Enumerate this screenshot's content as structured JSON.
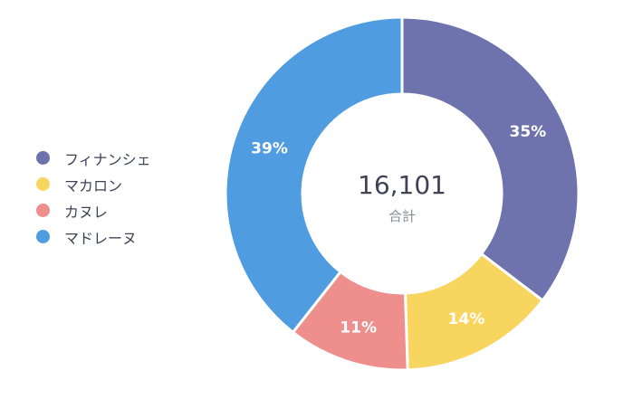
{
  "chart_data": {
    "type": "pie",
    "donut": true,
    "legend_position": "left",
    "categories": [
      "フィナンシェ",
      "マカロン",
      "カヌレ",
      "マドレーヌ"
    ],
    "values": [
      35,
      14,
      11,
      39
    ],
    "data_labels": [
      "35%",
      "14%",
      "11%",
      "39%"
    ],
    "colors": [
      "#6f73ad",
      "#f7d55f",
      "#ee8f8d",
      "#4f9de0"
    ],
    "center_value": "16,101",
    "center_label": "合計"
  }
}
